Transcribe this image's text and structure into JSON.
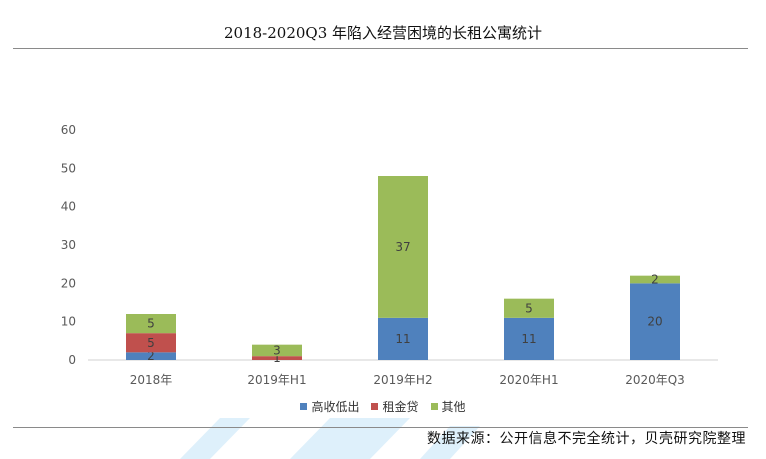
{
  "title": "2018-2020Q3 年陷入经营困境的长租公寓统计",
  "source": "数据来源：公开信息不完全统计，贝壳研究院整理",
  "chart_data": {
    "type": "bar",
    "stacked": true,
    "categories": [
      "2018年",
      "2019年H1",
      "2019年H2",
      "2020年H1",
      "2020年Q3"
    ],
    "series": [
      {
        "name": "高收低出",
        "color": "#4f81bd",
        "values": [
          2,
          0,
          11,
          11,
          20
        ]
      },
      {
        "name": "租金贷",
        "color": "#c0504d",
        "values": [
          5,
          1,
          0,
          0,
          0
        ]
      },
      {
        "name": "其他",
        "color": "#9bbb59",
        "values": [
          5,
          3,
          37,
          5,
          2
        ]
      }
    ],
    "ylim": [
      0,
      60
    ],
    "yticks": [
      0,
      10,
      20,
      30,
      40,
      50,
      60
    ],
    "grid": false,
    "legend_position": "bottom"
  }
}
